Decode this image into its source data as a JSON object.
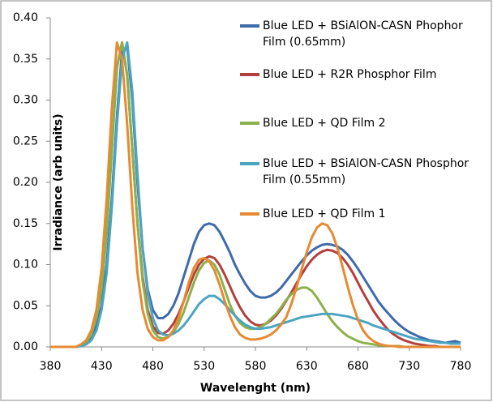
{
  "chart_data": {
    "type": "line",
    "x_label": "Wavelenght (nm)",
    "y_label": "Irradiance (arb units)",
    "x": [
      380,
      385,
      390,
      395,
      400,
      405,
      410,
      415,
      420,
      425,
      430,
      435,
      440,
      445,
      450,
      455,
      460,
      465,
      470,
      475,
      480,
      485,
      490,
      495,
      500,
      505,
      510,
      515,
      520,
      525,
      530,
      535,
      540,
      545,
      550,
      555,
      560,
      565,
      570,
      575,
      580,
      585,
      590,
      595,
      600,
      605,
      610,
      615,
      620,
      625,
      630,
      635,
      640,
      645,
      650,
      655,
      660,
      665,
      670,
      675,
      680,
      685,
      690,
      695,
      700,
      705,
      710,
      715,
      720,
      725,
      730,
      735,
      740,
      745,
      750,
      755,
      760,
      765,
      770,
      775,
      780
    ],
    "xlim": [
      380,
      780
    ],
    "xticks": [
      380,
      430,
      480,
      530,
      580,
      630,
      680,
      730,
      780
    ],
    "ylim": [
      0,
      0.4
    ],
    "yticks": [
      {
        "value": 0,
        "label": "0.00"
      },
      0.05,
      {
        "value": 0.1,
        "label": "0.10"
      },
      0.15,
      {
        "value": 0.2,
        "label": "0.20"
      },
      0.25,
      {
        "value": 0.3,
        "label": "0.30"
      },
      0.35,
      {
        "value": 0.4,
        "label": "0.40"
      }
    ],
    "grid": false,
    "legend": "upper right",
    "series": [
      {
        "name": "Blue LED + BSiAlON-CASN Phophor Film (0.65mm)",
        "color": "#3f6aab",
        "values": [
          0,
          0,
          0,
          0,
          0,
          0,
          0.002,
          0.005,
          0.012,
          0.025,
          0.05,
          0.1,
          0.18,
          0.28,
          0.36,
          0.365,
          0.3,
          0.2,
          0.12,
          0.07,
          0.045,
          0.035,
          0.035,
          0.04,
          0.05,
          0.065,
          0.085,
          0.105,
          0.125,
          0.14,
          0.148,
          0.15,
          0.148,
          0.14,
          0.128,
          0.115,
          0.1,
          0.088,
          0.077,
          0.068,
          0.062,
          0.06,
          0.06,
          0.062,
          0.066,
          0.072,
          0.08,
          0.088,
          0.096,
          0.104,
          0.111,
          0.117,
          0.121,
          0.124,
          0.125,
          0.124,
          0.122,
          0.118,
          0.112,
          0.104,
          0.095,
          0.085,
          0.075,
          0.065,
          0.055,
          0.047,
          0.04,
          0.033,
          0.027,
          0.022,
          0.018,
          0.015,
          0.012,
          0.01,
          0.008,
          0.007,
          0.006,
          0.005,
          0.006,
          0.007,
          0.005
        ]
      },
      {
        "name": "Blue LED + R2R Phosphor Film",
        "color": "#b3403d",
        "values": [
          0,
          0,
          0,
          0,
          0,
          0,
          0.002,
          0.006,
          0.015,
          0.035,
          0.07,
          0.14,
          0.24,
          0.34,
          0.37,
          0.33,
          0.24,
          0.15,
          0.085,
          0.045,
          0.025,
          0.017,
          0.016,
          0.02,
          0.028,
          0.04,
          0.055,
          0.072,
          0.088,
          0.1,
          0.107,
          0.11,
          0.108,
          0.1,
          0.088,
          0.074,
          0.06,
          0.048,
          0.038,
          0.031,
          0.027,
          0.026,
          0.028,
          0.032,
          0.038,
          0.046,
          0.056,
          0.066,
          0.077,
          0.088,
          0.098,
          0.106,
          0.112,
          0.116,
          0.118,
          0.117,
          0.114,
          0.108,
          0.1,
          0.09,
          0.078,
          0.066,
          0.055,
          0.044,
          0.035,
          0.027,
          0.02,
          0.015,
          0.011,
          0.008,
          0.006,
          0.004,
          0.003,
          0.002,
          0.001,
          0.001,
          0,
          0,
          0,
          0,
          0
        ]
      },
      {
        "name": "Blue LED + QD Film 2",
        "color": "#8db14a",
        "values": [
          0,
          0,
          0,
          0,
          0,
          0,
          0.002,
          0.006,
          0.015,
          0.035,
          0.07,
          0.14,
          0.24,
          0.34,
          0.37,
          0.33,
          0.24,
          0.15,
          0.08,
          0.04,
          0.02,
          0.012,
          0.01,
          0.012,
          0.018,
          0.028,
          0.042,
          0.06,
          0.078,
          0.093,
          0.102,
          0.105,
          0.1,
          0.088,
          0.07,
          0.052,
          0.038,
          0.029,
          0.024,
          0.022,
          0.022,
          0.024,
          0.028,
          0.034,
          0.04,
          0.048,
          0.057,
          0.064,
          0.069,
          0.072,
          0.072,
          0.068,
          0.06,
          0.05,
          0.04,
          0.031,
          0.024,
          0.018,
          0.013,
          0.01,
          0.007,
          0.005,
          0.004,
          0.003,
          0.002,
          0.002,
          0.001,
          0.001,
          0.001,
          0,
          0,
          0,
          0,
          0,
          0,
          0,
          0,
          0,
          0,
          0,
          0
        ]
      },
      {
        "name": "Blue LED + BSiAlON-CASN Phosphor Film (0.55mm)",
        "color": "#4ba6bf",
        "values": [
          0,
          0,
          0,
          0,
          0,
          0,
          0.001,
          0.003,
          0.008,
          0.02,
          0.045,
          0.09,
          0.17,
          0.27,
          0.35,
          0.37,
          0.31,
          0.21,
          0.12,
          0.065,
          0.035,
          0.02,
          0.015,
          0.014,
          0.016,
          0.02,
          0.026,
          0.034,
          0.043,
          0.052,
          0.058,
          0.062,
          0.062,
          0.058,
          0.052,
          0.045,
          0.038,
          0.032,
          0.027,
          0.024,
          0.022,
          0.022,
          0.023,
          0.024,
          0.026,
          0.028,
          0.03,
          0.032,
          0.034,
          0.036,
          0.037,
          0.038,
          0.039,
          0.04,
          0.04,
          0.04,
          0.039,
          0.038,
          0.037,
          0.035,
          0.033,
          0.031,
          0.029,
          0.026,
          0.024,
          0.022,
          0.02,
          0.018,
          0.016,
          0.014,
          0.012,
          0.01,
          0.009,
          0.008,
          0.007,
          0.006,
          0.005,
          0.005,
          0.004,
          0.004,
          0.004
        ]
      },
      {
        "name": "Blue LED + QD Film 1",
        "color": "#e68a33",
        "values": [
          0,
          0,
          0,
          0,
          0,
          0,
          0.003,
          0.008,
          0.02,
          0.045,
          0.095,
          0.18,
          0.29,
          0.37,
          0.35,
          0.27,
          0.17,
          0.09,
          0.045,
          0.022,
          0.012,
          0.008,
          0.008,
          0.012,
          0.02,
          0.035,
          0.055,
          0.078,
          0.096,
          0.106,
          0.108,
          0.104,
          0.093,
          0.076,
          0.056,
          0.038,
          0.024,
          0.015,
          0.011,
          0.009,
          0.009,
          0.01,
          0.012,
          0.015,
          0.02,
          0.027,
          0.036,
          0.052,
          0.072,
          0.094,
          0.115,
          0.133,
          0.145,
          0.15,
          0.148,
          0.138,
          0.12,
          0.097,
          0.073,
          0.051,
          0.033,
          0.02,
          0.012,
          0.007,
          0.004,
          0.002,
          0.001,
          0.001,
          0,
          0,
          0,
          0,
          0,
          0,
          0,
          0,
          0,
          0,
          0,
          0,
          0
        ]
      }
    ]
  }
}
